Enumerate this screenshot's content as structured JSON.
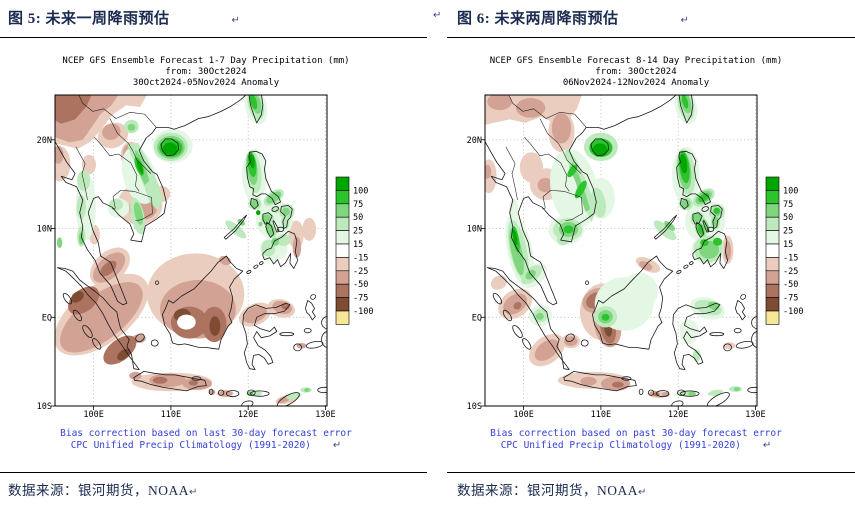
{
  "legend": {
    "values": [
      "100",
      "75",
      "50",
      "25",
      "15",
      "-15",
      "-25",
      "-50",
      "-75",
      "-100"
    ],
    "colors": [
      "#00A600",
      "#2DC32D",
      "#7FD67F",
      "#BCEABC",
      "#E4F6E4",
      "#FFFFFF",
      "#EACDBE",
      "#D2A294",
      "#AC7361",
      "#7E4B33",
      "#F6E896"
    ]
  },
  "axes": {
    "y_labels": [
      "20N",
      "10N",
      "EQ",
      "10S"
    ],
    "x_labels": [
      "100E",
      "110E",
      "120E",
      "130E"
    ]
  },
  "figures": [
    {
      "caption": "图 5: 未来一周降雨预估",
      "pilcrow": "↵",
      "title_lines": [
        "NCEP GFS Ensemble Forecast 1-7 Day Precipitation (mm)",
        "from: 30Oct2024",
        "30Oct2024-05Nov2024 Anomaly"
      ],
      "note_lines": [
        "Bias correction based on last 30-day forecast error",
        "CPC Unified Precip Climatology (1991-2020)"
      ],
      "source": "数据来源：银河期货，NOAA"
    },
    {
      "caption": "图 6: 未来两周降雨预估",
      "pilcrow": "↵",
      "title_lines": [
        "NCEP GFS Ensemble Forecast 8-14 Day Precipitation (mm)",
        "from: 30Oct2024",
        "06Nov2024-12Nov2024 Anomaly"
      ],
      "note_lines": [
        "Bias correction based on past 30-day forecast error",
        "CPC Unified Precip Climatology (1991-2020)"
      ],
      "source": "数据来源：银河期货，NOAA"
    }
  ],
  "colors": {
    "caption_text": "#1a2b4f",
    "note_text": "#3240d8",
    "grid": "#999999",
    "coast": "#1a1a1a"
  }
}
